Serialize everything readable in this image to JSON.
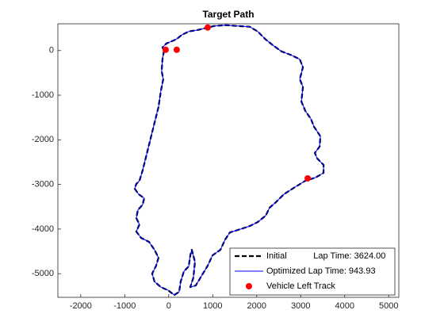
{
  "chart_data": {
    "type": "line",
    "title": "Target Path",
    "xlim": [
      -2520,
      5230
    ],
    "ylim": [
      -5530,
      600
    ],
    "xticks": [
      -2000,
      -1000,
      0,
      1000,
      2000,
      3000,
      4000,
      5000
    ],
    "yticks": [
      -5000,
      -4000,
      -3000,
      -2000,
      -1000,
      0
    ],
    "legend": "bottom-right",
    "series": [
      {
        "name": "Initial           Lap Time: 3624.00",
        "color": "#000000",
        "dash": true,
        "marker": false,
        "x": [
          -106,
          -143,
          -161,
          -124,
          -179,
          -233,
          -323,
          -413,
          -503,
          -594,
          -666,
          -738,
          -774,
          -684,
          -557,
          -594,
          -702,
          -738,
          -666,
          -738,
          -630,
          -449,
          -323,
          -233,
          -287,
          -377,
          -323,
          -179,
          -16,
          128,
          236,
          272,
          345,
          453,
          489,
          525,
          597,
          561,
          489,
          615,
          777,
          886,
          994,
          1174,
          1283,
          1391,
          1571,
          1842,
          2022,
          2203,
          2293,
          2437,
          2618,
          2870,
          3105,
          3340,
          3520,
          3520,
          3375,
          3321,
          3430,
          3448,
          3303,
          3231,
          3105,
          3015,
          3051,
          2979,
          3051,
          2979,
          2798,
          2563,
          2383,
          2203,
          2022,
          1842,
          1571,
          1300,
          1030,
          886,
          669,
          453,
          308,
          164,
          -52,
          -143,
          -106
        ],
        "values": [
          0,
          -196,
          -463,
          -641,
          -907,
          -1263,
          -1619,
          -1975,
          -2330,
          -2686,
          -2918,
          -2989,
          -3095,
          -3220,
          -3309,
          -3451,
          -3576,
          -3754,
          -3896,
          -4056,
          -4198,
          -4287,
          -4465,
          -4643,
          -4821,
          -4999,
          -5177,
          -5301,
          -5372,
          -5479,
          -5408,
          -5177,
          -4946,
          -4839,
          -4590,
          -4465,
          -4732,
          -5088,
          -5301,
          -5266,
          -4999,
          -4821,
          -4590,
          -4465,
          -4234,
          -4074,
          -4021,
          -3932,
          -3843,
          -3700,
          -3522,
          -3398,
          -3220,
          -3060,
          -2918,
          -2846,
          -2740,
          -2562,
          -2419,
          -2295,
          -2153,
          -1921,
          -1708,
          -1530,
          -1352,
          -1139,
          -818,
          -641,
          -374,
          -196,
          -107,
          -18,
          107,
          249,
          427,
          534,
          551,
          569,
          551,
          516,
          463,
          427,
          356,
          249,
          160,
          71,
          0
        ]
      },
      {
        "name": "Optimized Lap Time: 943.93",
        "color": "#0000ff",
        "dash": false,
        "marker": false,
        "x": [
          -106,
          -143,
          -161,
          -124,
          -179,
          -233,
          -323,
          -413,
          -503,
          -594,
          -666,
          -738,
          -774,
          -684,
          -557,
          -594,
          -702,
          -738,
          -666,
          -738,
          -630,
          -449,
          -323,
          -233,
          -287,
          -377,
          -323,
          -179,
          -16,
          128,
          236,
          272,
          345,
          453,
          489,
          525,
          597,
          561,
          489,
          615,
          777,
          886,
          994,
          1174,
          1283,
          1391,
          1571,
          1842,
          2022,
          2203,
          2293,
          2437,
          2618,
          2870,
          3105,
          3340,
          3520,
          3520,
          3375,
          3321,
          3430,
          3448,
          3303,
          3231,
          3105,
          3015,
          3051,
          2979,
          3051,
          2979,
          2798,
          2563,
          2383,
          2203,
          2022,
          1842,
          1571,
          1300,
          1030,
          886,
          669,
          453,
          308,
          164,
          -52,
          -143,
          -106
        ],
        "values": [
          0,
          -196,
          -463,
          -641,
          -907,
          -1263,
          -1619,
          -1975,
          -2330,
          -2686,
          -2918,
          -2989,
          -3095,
          -3220,
          -3309,
          -3451,
          -3576,
          -3754,
          -3896,
          -4056,
          -4198,
          -4287,
          -4465,
          -4643,
          -4821,
          -4999,
          -5177,
          -5301,
          -5372,
          -5479,
          -5408,
          -5177,
          -4946,
          -4839,
          -4590,
          -4465,
          -4732,
          -5088,
          -5301,
          -5266,
          -4999,
          -4821,
          -4590,
          -4465,
          -4234,
          -4074,
          -4021,
          -3932,
          -3843,
          -3700,
          -3522,
          -3398,
          -3220,
          -3060,
          -2918,
          -2846,
          -2740,
          -2562,
          -2419,
          -2295,
          -2153,
          -1921,
          -1708,
          -1530,
          -1352,
          -1139,
          -818,
          -641,
          -374,
          -196,
          -107,
          -18,
          107,
          249,
          427,
          534,
          551,
          569,
          551,
          516,
          463,
          427,
          356,
          249,
          160,
          71,
          0
        ]
      },
      {
        "name": "Vehicle Left Track",
        "color": "#ff0000",
        "dash": false,
        "marker": true,
        "x": [
          -70,
          182,
          886,
          3159
        ],
        "values": [
          18,
          18,
          516,
          -2864
        ]
      }
    ]
  }
}
